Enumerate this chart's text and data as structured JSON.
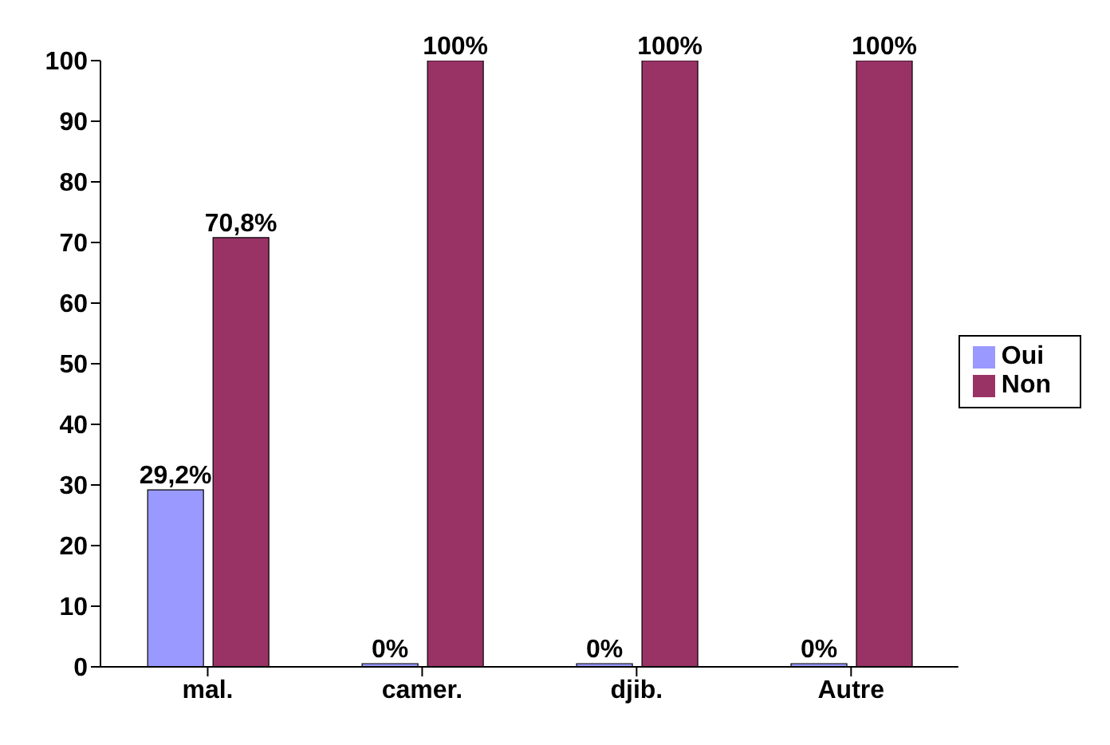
{
  "chart_data": {
    "type": "bar",
    "categories": [
      "mal.",
      "camer.",
      "djib.",
      "Autre"
    ],
    "series": [
      {
        "name": "Oui",
        "color": "#9999ff",
        "values": [
          29.2,
          0,
          0,
          0
        ],
        "value_labels": [
          "29,2%",
          "0%",
          "0%",
          "0%"
        ]
      },
      {
        "name": "Non",
        "color": "#993366",
        "values": [
          70.8,
          100,
          100,
          100
        ],
        "value_labels": [
          "70,8%",
          "100%",
          "100%",
          "100%"
        ]
      }
    ],
    "ylim": [
      0,
      100
    ],
    "yticks": [
      0,
      10,
      20,
      30,
      40,
      50,
      60,
      70,
      80,
      90,
      100
    ],
    "grid": false,
    "legend": "right"
  }
}
